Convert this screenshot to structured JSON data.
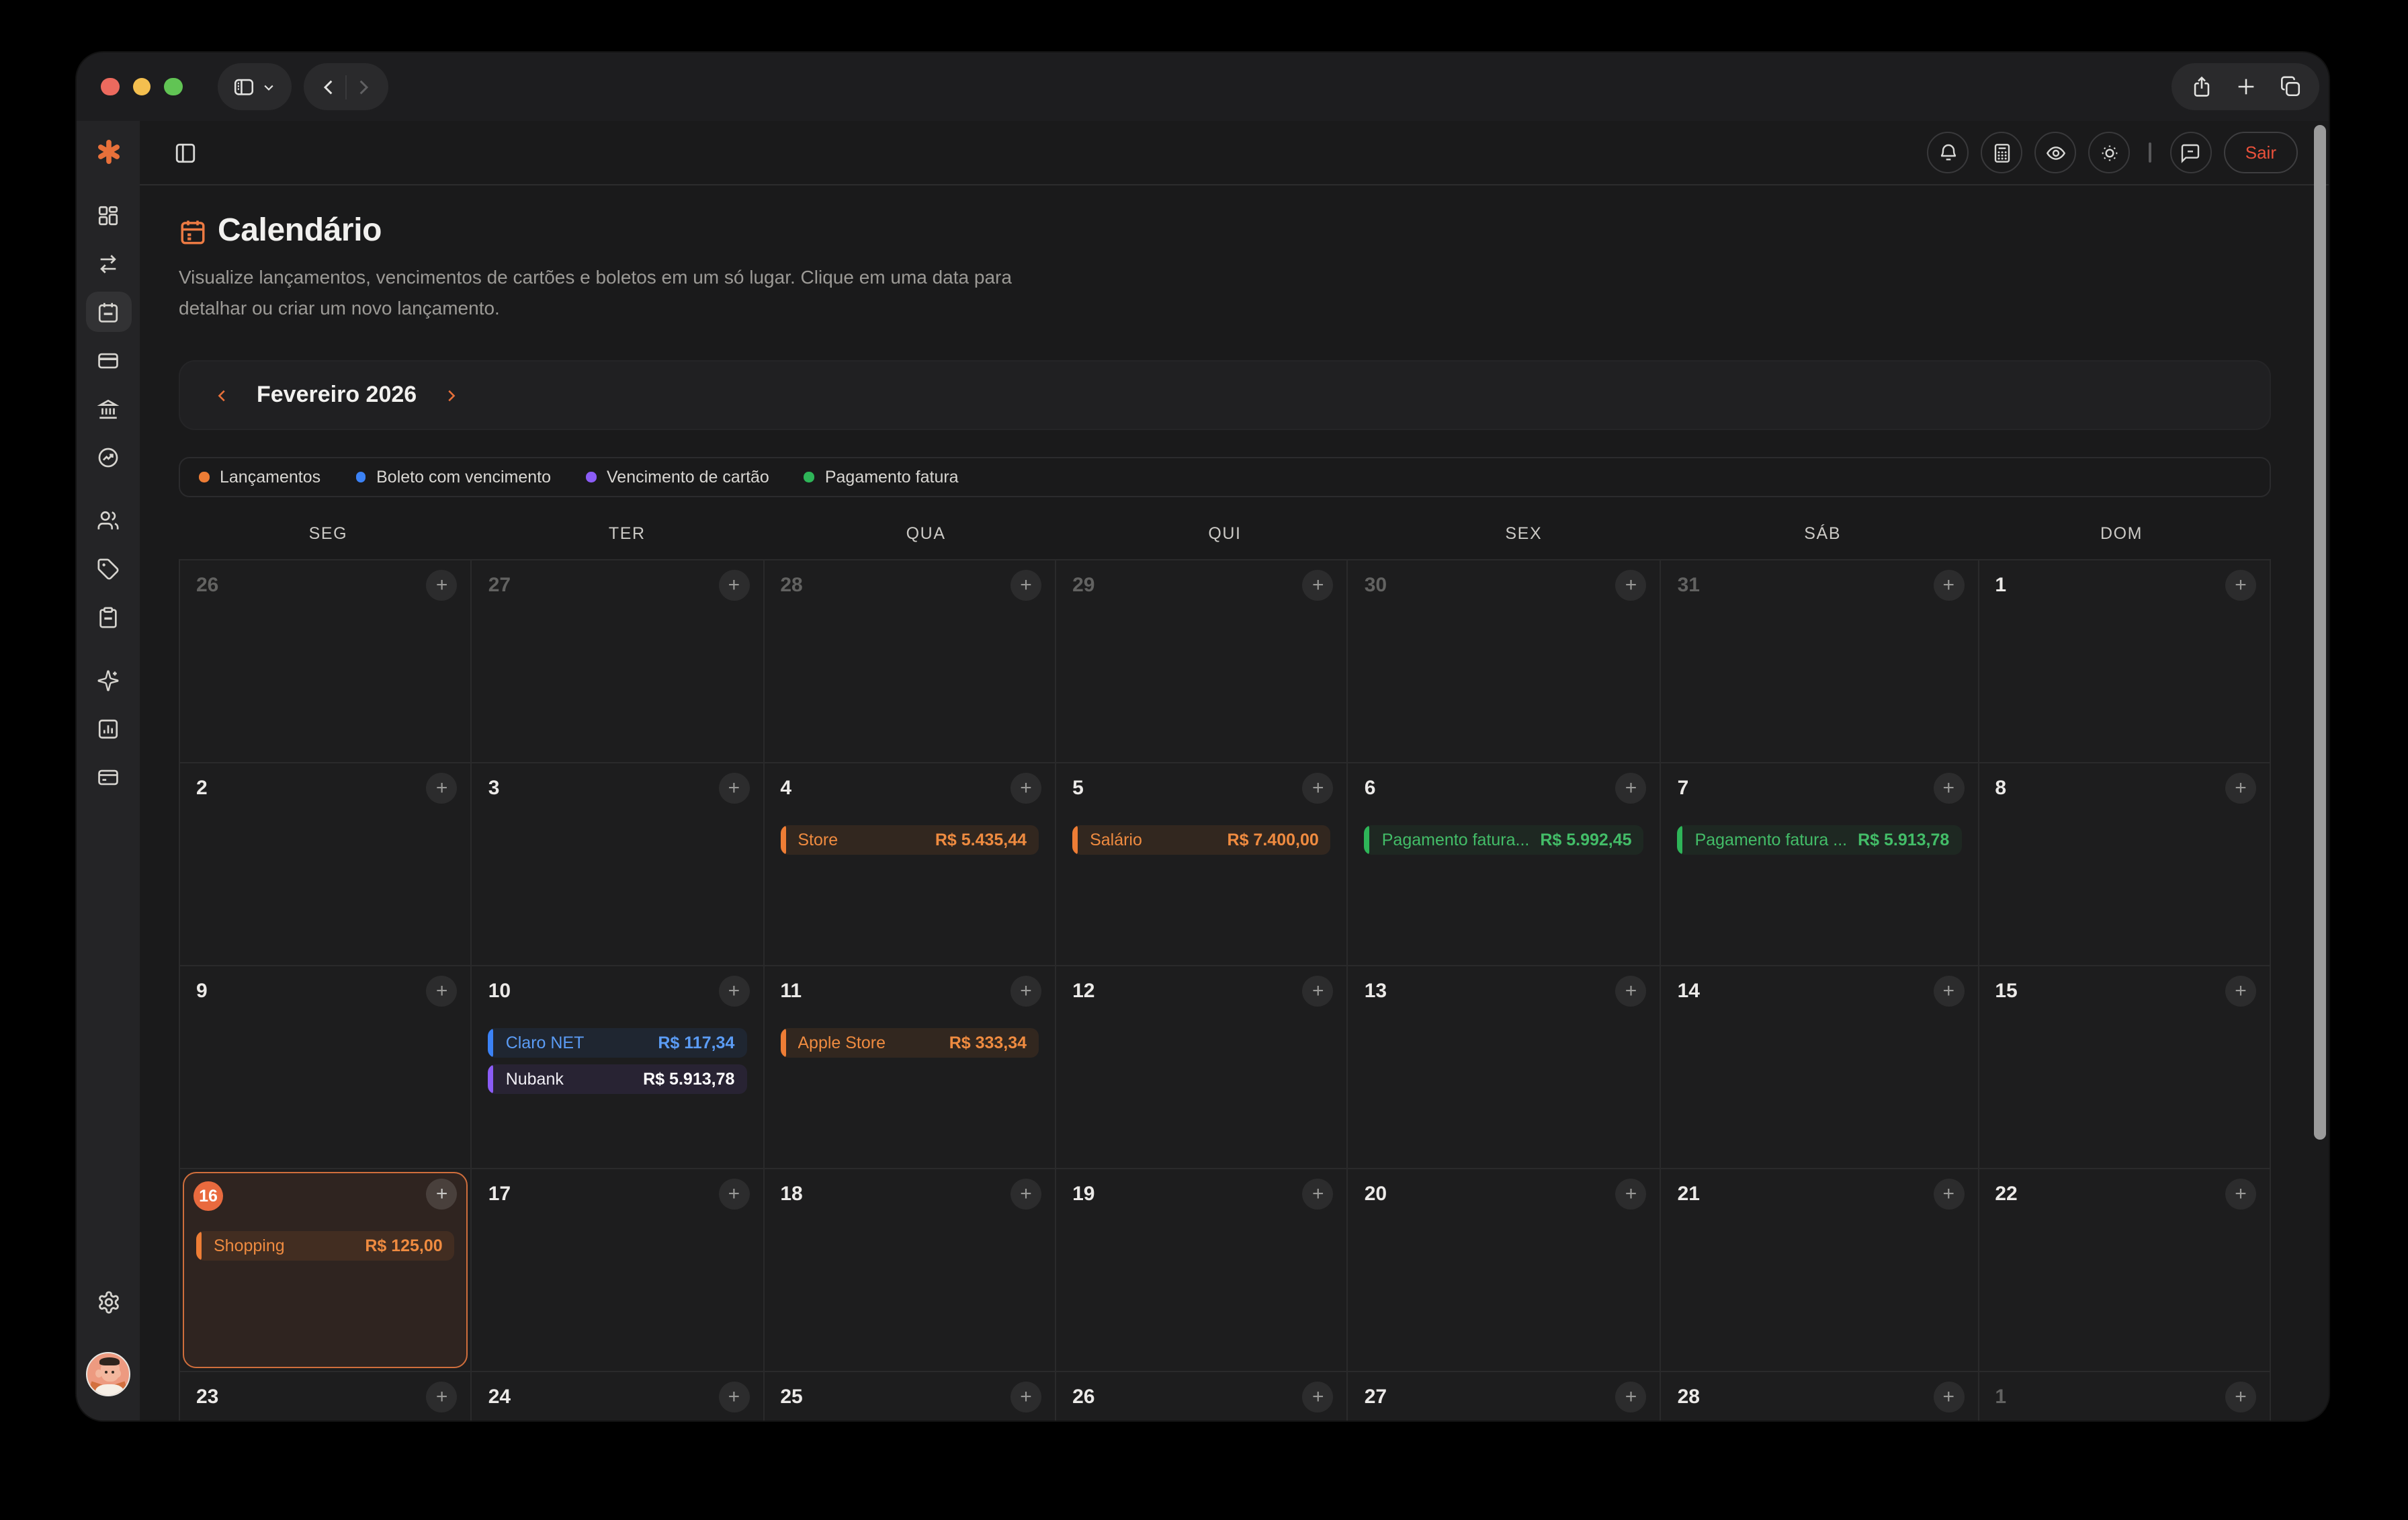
{
  "window": {
    "traffic_lights": [
      {
        "name": "close",
        "color": "#ec6a5e"
      },
      {
        "name": "minimize",
        "color": "#f4bf4f"
      },
      {
        "name": "zoom",
        "color": "#61c454"
      }
    ],
    "toolbar_icons": [
      "sidebar-toggle",
      "chevron-down",
      "back",
      "forward",
      "share",
      "new-tab",
      "tab-overview"
    ]
  },
  "app_header": {
    "icons": [
      "panel-left",
      "bell",
      "calculator",
      "eye",
      "brightness",
      "chat"
    ],
    "logout_label": "Sair"
  },
  "sidebar": {
    "logo_icon": "asterisk",
    "items": [
      {
        "icon": "dashboard",
        "active": false
      },
      {
        "icon": "transfers",
        "active": false
      },
      {
        "icon": "calendar",
        "active": true
      },
      {
        "icon": "card",
        "active": false
      },
      {
        "icon": "bank",
        "active": false
      },
      {
        "icon": "trending-circle",
        "active": false
      },
      {
        "icon": "users",
        "active": false
      },
      {
        "icon": "tag",
        "active": false
      },
      {
        "icon": "clipboard",
        "active": false
      },
      {
        "icon": "sparkles",
        "active": false
      },
      {
        "icon": "report",
        "active": false
      },
      {
        "icon": "wallet",
        "active": false
      }
    ],
    "bottom_icons": [
      "settings",
      "avatar"
    ]
  },
  "page": {
    "title": "Calendário",
    "title_icon": "calendar",
    "subtitle": "Visualize lançamentos, vencimentos de cartões e boletos em um só lugar. Clique em uma data para detalhar ou criar um novo lançamento."
  },
  "month_nav": {
    "label": "Fevereiro 2026",
    "prev_icon": "chevron-left",
    "next_icon": "chevron-right"
  },
  "legend": [
    {
      "label": "Lançamentos",
      "color": "#ee7d35",
      "type": "lancamento"
    },
    {
      "label": "Boleto com vencimento",
      "color": "#3b82f6",
      "type": "boleto"
    },
    {
      "label": "Vencimento de cartão",
      "color": "#8b5cf6",
      "type": "cartao"
    },
    {
      "label": "Pagamento fatura",
      "color": "#2eb558",
      "type": "pagamento"
    }
  ],
  "calendar": {
    "weekday_headers": [
      "SEG",
      "TER",
      "QUA",
      "QUI",
      "SEX",
      "SÁB",
      "DOM"
    ],
    "add_button_label": "+",
    "weeks": [
      [
        {
          "day": "26",
          "muted": true
        },
        {
          "day": "27",
          "muted": true
        },
        {
          "day": "28",
          "muted": true
        },
        {
          "day": "29",
          "muted": true
        },
        {
          "day": "30",
          "muted": true
        },
        {
          "day": "31",
          "muted": true
        },
        {
          "day": "1"
        }
      ],
      [
        {
          "day": "2"
        },
        {
          "day": "3"
        },
        {
          "day": "4",
          "events": [
            {
              "name": "Store",
              "amount": "R$ 5.435,44",
              "type": "lancamento"
            }
          ]
        },
        {
          "day": "5",
          "events": [
            {
              "name": "Salário",
              "amount": "R$ 7.400,00",
              "type": "lancamento"
            }
          ]
        },
        {
          "day": "6",
          "events": [
            {
              "name": "Pagamento fatura...",
              "amount": "R$ 5.992,45",
              "type": "pagamento"
            }
          ]
        },
        {
          "day": "7",
          "events": [
            {
              "name": "Pagamento fatura ...",
              "amount": "R$ 5.913,78",
              "type": "pagamento"
            }
          ]
        },
        {
          "day": "8"
        }
      ],
      [
        {
          "day": "9"
        },
        {
          "day": "10",
          "events": [
            {
              "name": "Claro NET",
              "amount": "R$ 117,34",
              "type": "boleto"
            },
            {
              "name": "Nubank",
              "amount": "R$ 5.913,78",
              "type": "cartao"
            }
          ]
        },
        {
          "day": "11",
          "events": [
            {
              "name": "Apple Store",
              "amount": "R$ 333,34",
              "type": "lancamento"
            }
          ]
        },
        {
          "day": "12"
        },
        {
          "day": "13"
        },
        {
          "day": "14"
        },
        {
          "day": "15"
        }
      ],
      [
        {
          "day": "16",
          "today": true,
          "events": [
            {
              "name": "Shopping",
              "amount": "R$ 125,00",
              "type": "lancamento"
            }
          ]
        },
        {
          "day": "17"
        },
        {
          "day": "18"
        },
        {
          "day": "19"
        },
        {
          "day": "20"
        },
        {
          "day": "21"
        },
        {
          "day": "22"
        }
      ],
      [
        {
          "day": "23"
        },
        {
          "day": "24"
        },
        {
          "day": "25"
        },
        {
          "day": "26"
        },
        {
          "day": "27"
        },
        {
          "day": "28"
        },
        {
          "day": "1",
          "muted": true
        }
      ]
    ]
  }
}
